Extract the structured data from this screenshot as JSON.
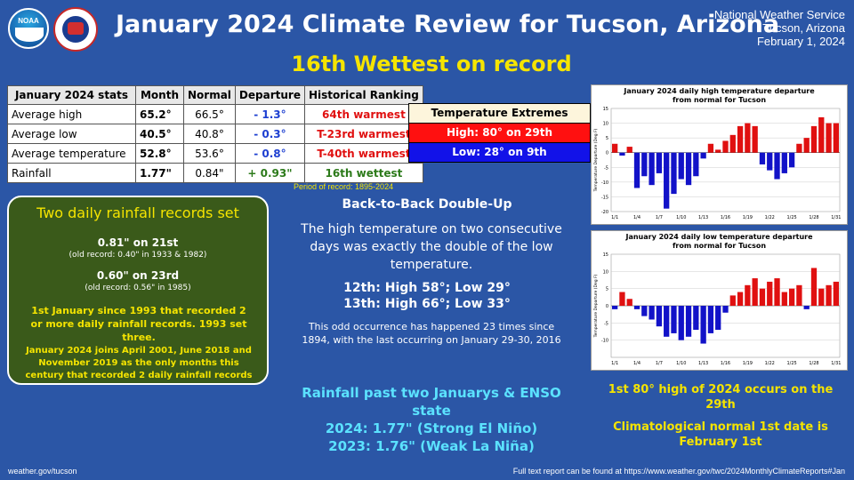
{
  "header": {
    "title": "January 2024 Climate Review for Tucson, Arizona",
    "subtitle": "16th Wettest on record",
    "office": "National Weather Service",
    "location": "Tucson, Arizona",
    "date": "February 1, 2024"
  },
  "stats_table": {
    "headers": [
      "January 2024 stats",
      "Month",
      "Normal",
      "Departure",
      "Historical Ranking"
    ],
    "rows": [
      {
        "label": "Average high",
        "month": "65.2°",
        "normal": "66.5°",
        "departure": "- 1.3°",
        "ranking": "64th warmest"
      },
      {
        "label": "Average low",
        "month": "40.5°",
        "normal": "40.8°",
        "departure": "- 0.3°",
        "ranking": "T-23rd warmest"
      },
      {
        "label": "Average temperature",
        "month": "52.8°",
        "normal": "53.6°",
        "departure": "- 0.8°",
        "ranking": "T-40th warmest"
      },
      {
        "label": "Rainfall",
        "month": "1.77\"",
        "normal": "0.84\"",
        "departure": "+ 0.93\"",
        "ranking": "16th wettest"
      }
    ],
    "period": "Period of record: 1895-2024"
  },
  "temperature_extremes": {
    "title": "Temperature Extremes",
    "high": "High: 80° on 29th",
    "low": "Low: 28° on 9th"
  },
  "rainfall_records": {
    "title": "Two daily rainfall records set",
    "rec1": "0.81\" on 21st",
    "rec1_old": "(old record: 0.40\" in 1933 & 1982)",
    "rec2": "0.60\" on 23rd",
    "rec2_old": "(old record: 0.56\" in 1985)",
    "note1": "1st January since 1993 that recorded 2 or more daily rainfall records. 1993 set three.",
    "note2": "January 2024 joins April 2001, June 2018 and November 2019 as the only months this century that recorded 2 daily rainfall records"
  },
  "back_to_back": {
    "title": "Back-to-Back Double-Up",
    "body": "The high temperature on two consecutive days was exactly the double of the low temperature.",
    "line1": "12th: High 58°; Low 29°",
    "line2": "13th: High 66°; Low 33°",
    "note": "This odd occurrence has happened 23 times since 1894, with the last occurring on January 29-30, 2016"
  },
  "enso": {
    "title": "Rainfall past two Januarys & ENSO state",
    "line1": "2024: 1.77\" (Strong El Niño)",
    "line2": "2023: 1.76\" (Weak La Niña)"
  },
  "first_80": "1st 80° high of 2024 occurs on the 29th",
  "climo_normal": "Climatological normal 1st date is February 1st",
  "footer": {
    "left": "weather.gov/tucson",
    "right": "Full text report can be found at https://www.weather.gov/twc/2024MonthlyClimateReports#Jan"
  },
  "colors": {
    "background": "#2b56a6",
    "highlight": "#f5e400",
    "cyan": "#5be2ff",
    "bar_pos": "#e01010",
    "bar_neg": "#1212c8"
  },
  "chart_data": [
    {
      "type": "bar",
      "title": "January 2024 daily high temperature departure from normal for Tucson",
      "ylabel": "Temperature Departure (Deg F)",
      "xticks": [
        "1/1",
        "1/4",
        "1/7",
        "1/10",
        "1/13",
        "1/16",
        "1/19",
        "1/22",
        "1/25",
        "1/28",
        "1/31"
      ],
      "ylim": [
        -20,
        15
      ],
      "yticks": [
        15,
        10,
        5,
        0,
        -5,
        -10,
        -15,
        -20
      ],
      "categories": [
        1,
        2,
        3,
        4,
        5,
        6,
        7,
        8,
        9,
        10,
        11,
        12,
        13,
        14,
        15,
        16,
        17,
        18,
        19,
        20,
        21,
        22,
        23,
        24,
        25,
        26,
        27,
        28,
        29,
        30,
        31
      ],
      "values": [
        3,
        -1,
        2,
        -12,
        -8,
        -11,
        -7,
        -19,
        -14,
        -9,
        -11,
        -8,
        -2,
        3,
        1,
        4,
        6,
        9,
        10,
        9,
        -4,
        -6,
        -9,
        -7,
        -5,
        3,
        5,
        9,
        12,
        10,
        10
      ]
    },
    {
      "type": "bar",
      "title": "January 2024 daily low temperature departure from normal for Tucson",
      "ylabel": "Temperature Departure (Deg F)",
      "xticks": [
        "1/1",
        "1/4",
        "1/7",
        "1/10",
        "1/13",
        "1/16",
        "1/19",
        "1/22",
        "1/25",
        "1/28",
        "1/31"
      ],
      "ylim": [
        -15,
        15
      ],
      "yticks": [
        15,
        10,
        5,
        0,
        -5,
        -10
      ],
      "categories": [
        1,
        2,
        3,
        4,
        5,
        6,
        7,
        8,
        9,
        10,
        11,
        12,
        13,
        14,
        15,
        16,
        17,
        18,
        19,
        20,
        21,
        22,
        23,
        24,
        25,
        26,
        27,
        28,
        29,
        30,
        31
      ],
      "values": [
        -1,
        4,
        2,
        -1,
        -3,
        -4,
        -6,
        -9,
        -8,
        -10,
        -9,
        -7,
        -11,
        -8,
        -7,
        -2,
        3,
        4,
        6,
        8,
        5,
        7,
        8,
        4,
        5,
        6,
        -1,
        11,
        5,
        6,
        7
      ]
    }
  ]
}
